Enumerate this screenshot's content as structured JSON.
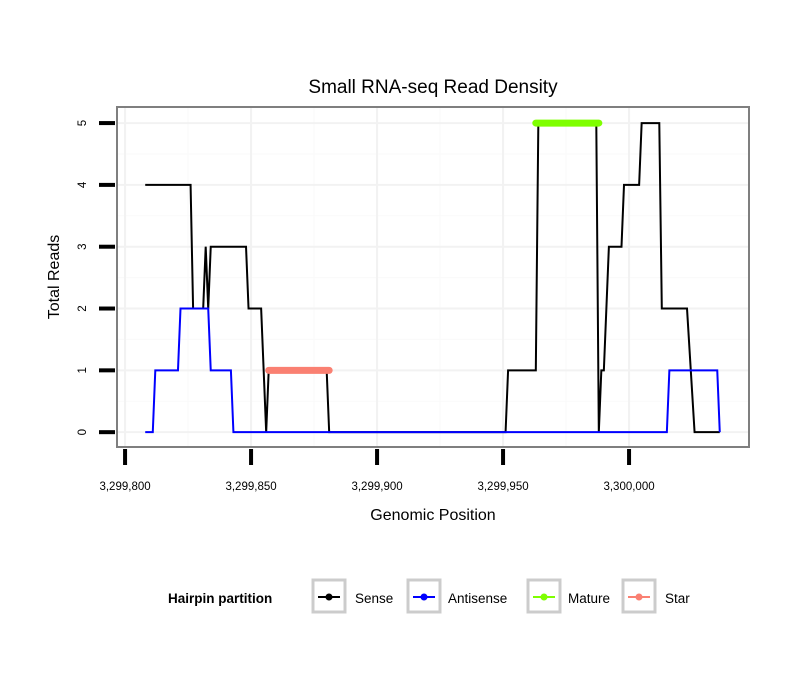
{
  "chart_data": {
    "type": "line",
    "title": "Small RNA-seq Read Density",
    "xlabel": "Genomic Position",
    "ylabel": "Total Reads",
    "xlim": [
      3299796.8,
      3300047.6
    ],
    "ylim": [
      -0.24,
      5.26
    ],
    "x_ticks": [
      3299800,
      3299850,
      3299900,
      3299950,
      3300000
    ],
    "x_tick_labels": [
      "3,299,800",
      "3,299,850",
      "3,299,900",
      "3,299,950",
      "3,300,000"
    ],
    "y_ticks": [
      0,
      1,
      2,
      3,
      4,
      5
    ],
    "y_tick_labels": [
      "0",
      "1",
      "2",
      "3",
      "4",
      "5"
    ],
    "grid": true,
    "legend": {
      "title": "Hairpin partition",
      "placement": "bottom",
      "entries": [
        {
          "name": "Sense",
          "color": "#000000"
        },
        {
          "name": "Antisense",
          "color": "#0000ff"
        },
        {
          "name": "Mature",
          "color": "#7fff00"
        },
        {
          "name": "Star",
          "color": "#fa8072"
        }
      ]
    },
    "series": [
      {
        "name": "Sense",
        "color": "#000000",
        "points": [
          [
            3299808,
            4
          ],
          [
            3299826,
            4
          ],
          [
            3299827,
            2
          ],
          [
            3299831,
            2
          ],
          [
            3299832,
            3
          ],
          [
            3299833,
            2
          ],
          [
            3299834,
            3
          ],
          [
            3299848,
            3
          ],
          [
            3299849,
            2
          ],
          [
            3299854,
            2
          ],
          [
            3299856,
            0
          ],
          [
            3299857,
            1
          ],
          [
            3299880,
            1
          ],
          [
            3299881,
            0
          ],
          [
            3299951,
            0
          ],
          [
            3299952,
            1
          ],
          [
            3299963,
            1
          ],
          [
            3299964,
            5
          ],
          [
            3299987,
            5
          ],
          [
            3299988,
            0
          ],
          [
            3299989,
            1
          ],
          [
            3299990,
            1
          ],
          [
            3299992,
            3
          ],
          [
            3299997,
            3
          ],
          [
            3299998,
            4
          ],
          [
            3300004,
            4
          ],
          [
            3300005,
            5
          ],
          [
            3300012,
            5
          ],
          [
            3300013,
            2
          ],
          [
            3300023,
            2
          ],
          [
            3300026,
            0
          ],
          [
            3300036,
            0
          ]
        ]
      },
      {
        "name": "Antisense",
        "color": "#0000ff",
        "points": [
          [
            3299808,
            0
          ],
          [
            3299811,
            0
          ],
          [
            3299812,
            1
          ],
          [
            3299821,
            1
          ],
          [
            3299822,
            2
          ],
          [
            3299833,
            2
          ],
          [
            3299834,
            1
          ],
          [
            3299842,
            1
          ],
          [
            3299843,
            0
          ],
          [
            3300015,
            0
          ],
          [
            3300016,
            1
          ],
          [
            3300035,
            1
          ],
          [
            3300036,
            0
          ]
        ]
      },
      {
        "name": "Mature",
        "color": "#7fff00",
        "points": [
          [
            3299963,
            5
          ],
          [
            3299988,
            5
          ]
        ]
      },
      {
        "name": "Star",
        "color": "#fa8072",
        "points": [
          [
            3299857,
            1
          ],
          [
            3299881,
            1
          ]
        ]
      }
    ]
  }
}
